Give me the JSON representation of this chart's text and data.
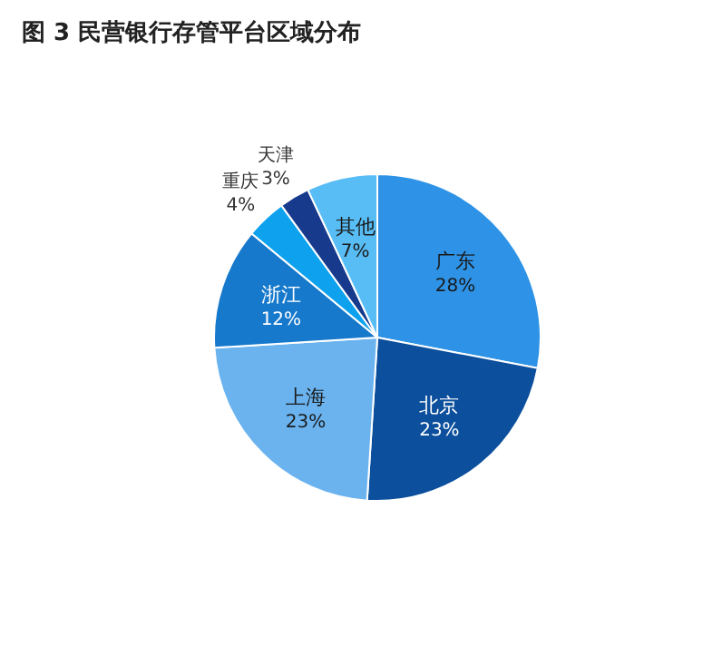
{
  "chart_data": {
    "type": "pie",
    "title": "图 3  民营银行存管平台区域分布",
    "categories": [
      "广东",
      "北京",
      "上海",
      "浙江",
      "重庆",
      "天津",
      "其他"
    ],
    "values": [
      28,
      23,
      23,
      12,
      4,
      3,
      7
    ],
    "value_labels": [
      "28%",
      "23%",
      "23%",
      "12%",
      "4%",
      "3%",
      "7%"
    ],
    "colors": [
      "#2e93e6",
      "#0c4f9c",
      "#6ab3ef",
      "#1779cc",
      "#0ea2ee",
      "#173a8c",
      "#58bdf4"
    ]
  }
}
